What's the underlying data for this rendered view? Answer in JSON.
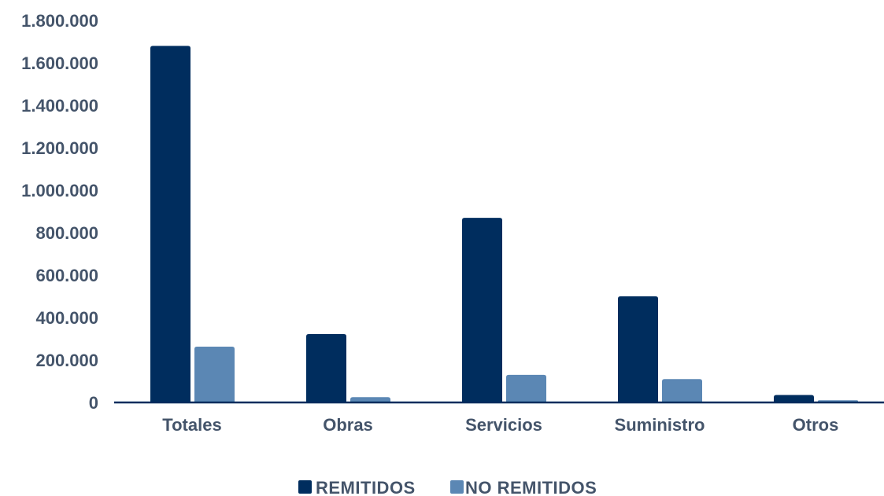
{
  "chart_data": {
    "type": "bar",
    "categories": [
      "Totales",
      "Obras",
      "Servicios",
      "Suministro",
      "Otros"
    ],
    "series": [
      {
        "name": "REMITIDOS",
        "color": "#002d5e",
        "values": [
          1680000,
          322000,
          870000,
          500000,
          35000
        ]
      },
      {
        "name": "NO REMITIDOS",
        "color": "#5b87b4",
        "values": [
          263000,
          25000,
          130000,
          110000,
          10000
        ]
      }
    ],
    "title": "",
    "xlabel": "",
    "ylabel": "",
    "ylim": [
      0,
      1800000
    ],
    "yticks": [
      0,
      200000,
      400000,
      600000,
      800000,
      1000000,
      1200000,
      1400000,
      1600000,
      1800000
    ],
    "ytick_labels": [
      "0",
      "200.000",
      "400.000",
      "600.000",
      "800.000",
      "1.000.000",
      "1.200.000",
      "1.400.000",
      "1.600.000",
      "1.800.000"
    ],
    "grid": false,
    "legend_position": "bottom",
    "axis_color": "#002d5e"
  }
}
